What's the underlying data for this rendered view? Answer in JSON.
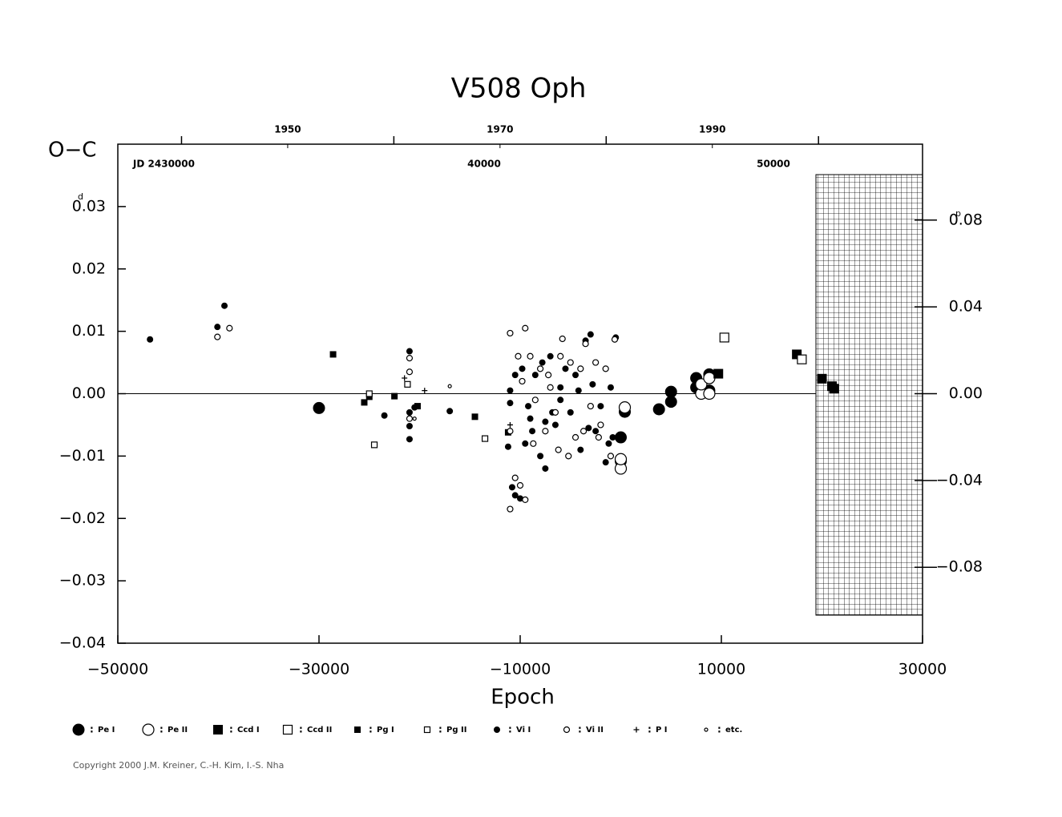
{
  "chart_data": {
    "type": "scatter",
    "title": "V508 Oph",
    "y_label": "O−C",
    "x_label": "Epoch",
    "y_unit": "d",
    "y2_unit": "p",
    "xlim": [
      -50000,
      30000
    ],
    "xticks": [
      {
        "value": -50000,
        "label": "−50000"
      },
      {
        "value": -30000,
        "label": "−30000"
      },
      {
        "value": -10000,
        "label": "−10000"
      },
      10000,
      30000
    ],
    "ylim": [
      -0.04,
      0.04
    ],
    "yticks": [
      {
        "value": -0.04,
        "label": "−0.04"
      },
      {
        "value": -0.03,
        "label": "−0.03"
      },
      {
        "value": -0.02,
        "label": "−0.02"
      },
      {
        "value": -0.01,
        "label": "−0.01"
      },
      {
        "value": 0,
        "label": "0.00"
      },
      0.01,
      0.02,
      0.03
    ],
    "y2lim": [
      -0.115,
      0.115
    ],
    "y2ticks": [
      {
        "value": -0.08,
        "label": "−0.08"
      },
      {
        "value": -0.04,
        "label": "−0.04"
      },
      {
        "value": 0,
        "label": "0.00"
      },
      0.04,
      0.08
    ],
    "year_lim": [
      1934.0,
      2009.8
    ],
    "year_ticks": [
      1940,
      1960,
      1980,
      2000
    ],
    "year_labels": [
      1950,
      1970,
      1990
    ],
    "jd_lim": [
      27341,
      55152
    ],
    "jd_labels": [
      {
        "value": 30000,
        "label": "JD 2430000"
      },
      40000,
      50000
    ],
    "legend_separator": ":",
    "series": [
      {
        "name": "Pe I",
        "marker": "circle",
        "filled": true,
        "size": 7,
        "color": "#000000",
        "x": [
          -30000,
          0,
          0,
          400,
          3800,
          5000,
          5000,
          7500,
          7500,
          8800,
          8800
        ],
        "values": [
          -0.0023,
          -0.007,
          -0.0108,
          -0.0029,
          -0.0025,
          -0.0013,
          0.0003,
          0.0025,
          0.001,
          0.0005,
          0.0031
        ]
      },
      {
        "name": "Pe II",
        "marker": "circle",
        "filled": false,
        "size": 7,
        "color": "#000000",
        "x": [
          0,
          0,
          400,
          8000,
          8000,
          8800,
          8800
        ],
        "values": [
          -0.012,
          -0.0105,
          -0.0022,
          0.0,
          0.0015,
          0.0,
          0.0025
        ]
      },
      {
        "name": "Ccd I",
        "marker": "square",
        "filled": true,
        "size": 5.5,
        "color": "#000000",
        "x": [
          9700,
          17500,
          20000,
          21000,
          21200
        ],
        "values": [
          0.0032,
          0.0063,
          0.0024,
          0.0012,
          0.0008
        ]
      },
      {
        "name": "Ccd II",
        "marker": "square",
        "filled": false,
        "size": 5.5,
        "color": "#000000",
        "x": [
          10300,
          18000
        ],
        "values": [
          0.009,
          0.0055
        ]
      },
      {
        "name": "Pg I",
        "marker": "square",
        "filled": true,
        "size": 3.5,
        "color": "#000000",
        "x": [
          -28600,
          -25500,
          -25000,
          -22500,
          -20200,
          -14500,
          -11200
        ],
        "values": [
          0.0063,
          -0.0014,
          -0.0005,
          -0.0004,
          -0.002,
          -0.0037,
          -0.0062
        ]
      },
      {
        "name": "Pg II",
        "marker": "square",
        "filled": false,
        "size": 3.5,
        "color": "#000000",
        "x": [
          -25000,
          -24500,
          -21200,
          -13500
        ],
        "values": [
          0.0,
          -0.0082,
          0.0015,
          -0.0072
        ]
      },
      {
        "name": "Vi I",
        "marker": "circle",
        "filled": true,
        "size": 3.5,
        "color": "#000000",
        "x": [
          -46800,
          -39400,
          -40100,
          -21000,
          -21000,
          -21000,
          -21000,
          -20500,
          -23500,
          -17000,
          -11000,
          -11000,
          -11200,
          -10800,
          -10500,
          -10000,
          -9500,
          -9000,
          -8500,
          -8000,
          -7500,
          -7000,
          -6500,
          -6000,
          -5500,
          -5000,
          -4500,
          -4000,
          -3500,
          -3000,
          -2500,
          -2000,
          -1500,
          -1000,
          -500,
          -10500,
          -9800,
          -9200,
          -8800,
          -7800,
          -6800,
          -4200,
          -3200,
          -1200,
          -800,
          -2800,
          -7500,
          -6000
        ],
        "values": [
          0.0087,
          0.0141,
          0.0107,
          0.0068,
          -0.0073,
          -0.0052,
          -0.003,
          -0.0022,
          -0.0035,
          -0.0028,
          0.0005,
          -0.0015,
          -0.0085,
          -0.015,
          -0.0163,
          -0.0168,
          -0.008,
          -0.004,
          0.003,
          -0.01,
          -0.012,
          0.006,
          -0.005,
          0.001,
          0.004,
          -0.003,
          0.003,
          -0.009,
          0.0085,
          0.0095,
          -0.006,
          -0.002,
          -0.011,
          0.001,
          0.009,
          0.003,
          0.004,
          -0.002,
          -0.006,
          0.005,
          -0.003,
          0.0005,
          -0.0055,
          -0.008,
          -0.007,
          0.0015,
          -0.0045,
          -0.001
        ]
      },
      {
        "name": "Vi II",
        "marker": "circle",
        "filled": false,
        "size": 3.5,
        "color": "#000000",
        "x": [
          -40100,
          -38900,
          -21000,
          -21000,
          -21000,
          -11000,
          -11000,
          -10500,
          -10000,
          -9800,
          -9500,
          -9500,
          -9000,
          -8500,
          -8000,
          -7500,
          -7000,
          -6500,
          -6000,
          -5800,
          -5200,
          -5000,
          -4500,
          -4000,
          -3500,
          -3000,
          -2500,
          -2000,
          -1500,
          -1000,
          -600,
          -11000,
          -10200,
          -8700,
          -7200,
          -6200,
          -3700,
          -2200
        ],
        "values": [
          0.0091,
          0.0105,
          0.0057,
          0.0035,
          -0.004,
          0.0097,
          -0.0185,
          -0.0135,
          -0.0147,
          0.002,
          0.0105,
          -0.017,
          0.006,
          -0.001,
          0.004,
          -0.006,
          0.001,
          -0.003,
          0.006,
          0.0088,
          -0.01,
          0.005,
          -0.007,
          0.004,
          0.008,
          -0.002,
          0.005,
          -0.005,
          0.004,
          -0.01,
          0.0087,
          -0.006,
          0.006,
          -0.008,
          0.003,
          -0.009,
          -0.006,
          -0.007
        ]
      },
      {
        "name": "P I",
        "marker": "plus",
        "filled": false,
        "size": 3.5,
        "color": "#000000",
        "x": [
          -21500,
          -19500,
          -11000
        ],
        "values": [
          0.0025,
          0.0005,
          -0.005
        ]
      },
      {
        "name": "etc.",
        "marker": "circle",
        "filled": false,
        "size": 2,
        "color": "#000000",
        "x": [
          -17000,
          -20500
        ],
        "values": [
          0.0012,
          -0.004
        ]
      }
    ],
    "copyright": "Copyright 2000 J.M. Kreiner, C.-H. Kim, I.-S. Nha"
  }
}
